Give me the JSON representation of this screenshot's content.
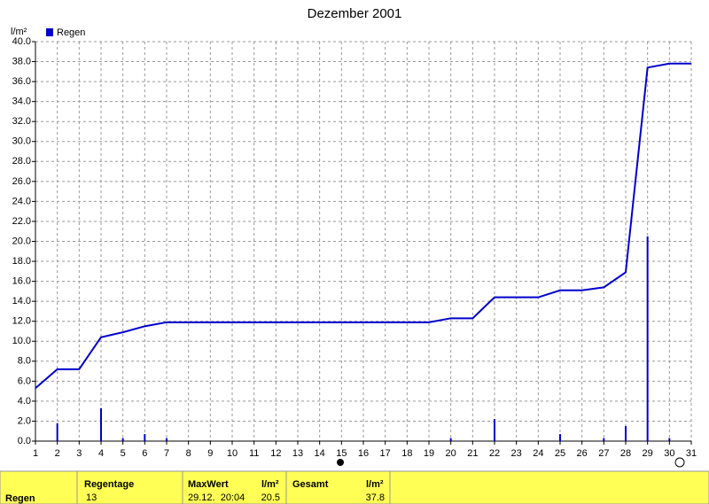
{
  "chart_data": {
    "type": "bar-line",
    "title": "Dezember 2001",
    "y_label": "l/m²",
    "x": [
      1,
      2,
      3,
      4,
      5,
      6,
      7,
      8,
      9,
      10,
      11,
      12,
      13,
      14,
      15,
      16,
      17,
      18,
      19,
      20,
      21,
      22,
      23,
      24,
      25,
      26,
      27,
      28,
      29,
      30,
      31
    ],
    "xlim": [
      1,
      31
    ],
    "xticks": [
      1,
      2,
      3,
      4,
      5,
      6,
      7,
      8,
      9,
      10,
      11,
      12,
      13,
      14,
      15,
      16,
      17,
      18,
      19,
      20,
      21,
      22,
      23,
      24,
      25,
      26,
      27,
      28,
      29,
      30,
      31
    ],
    "ylim": [
      0,
      40
    ],
    "yticks": [
      {
        "value": 0,
        "label": "0.0"
      },
      {
        "value": 2,
        "label": "2.0"
      },
      {
        "value": 4,
        "label": "4.0"
      },
      {
        "value": 6,
        "label": "6.0"
      },
      {
        "value": 8,
        "label": "8.0"
      },
      {
        "value": 10,
        "label": "10.0"
      },
      {
        "value": 12,
        "label": "12.0"
      },
      {
        "value": 14,
        "label": "14.0"
      },
      {
        "value": 16,
        "label": "16.0"
      },
      {
        "value": 18,
        "label": "18.0"
      },
      {
        "value": 20,
        "label": "20.0"
      },
      {
        "value": 22,
        "label": "22.0"
      },
      {
        "value": 24,
        "label": "24.0"
      },
      {
        "value": 26,
        "label": "26.0"
      },
      {
        "value": 28,
        "label": "28.0"
      },
      {
        "value": 30,
        "label": "30.0"
      },
      {
        "value": 32,
        "label": "32.0"
      },
      {
        "value": 34,
        "label": "34.0"
      },
      {
        "value": 36,
        "label": "36.0"
      },
      {
        "value": 38,
        "label": "38.0"
      },
      {
        "value": 40,
        "label": "40.0"
      }
    ],
    "grid": true,
    "series": [
      {
        "name": "Regen",
        "kind": "bar",
        "color": "#0000cc",
        "values": [
          null,
          1.8,
          null,
          3.3,
          0.3,
          0.7,
          0.3,
          null,
          null,
          null,
          null,
          null,
          null,
          null,
          null,
          null,
          null,
          null,
          null,
          0.3,
          null,
          2.2,
          null,
          null,
          0.7,
          null,
          0.3,
          1.5,
          20.5,
          0.3,
          null
        ]
      },
      {
        "kind": "line",
        "color": "#0000cc",
        "values": [
          5.3,
          7.2,
          7.2,
          10.4,
          10.9,
          11.5,
          11.9,
          11.9,
          11.9,
          11.9,
          11.9,
          11.9,
          11.9,
          11.9,
          11.9,
          11.9,
          11.9,
          11.9,
          11.9,
          12.3,
          12.3,
          14.4,
          14.4,
          14.4,
          15.1,
          15.1,
          15.4,
          16.9,
          37.4,
          37.8,
          37.8
        ]
      }
    ]
  },
  "table": {
    "row_label": "Regen",
    "columns": [
      {
        "header": "Regentage",
        "value": "13"
      },
      {
        "header": "MaxWert",
        "unit": "l/m²",
        "time": "29.12.  20:04",
        "value": "20.5"
      },
      {
        "header": "Gesamt",
        "unit": "l/m²",
        "value": "37.8"
      }
    ]
  }
}
